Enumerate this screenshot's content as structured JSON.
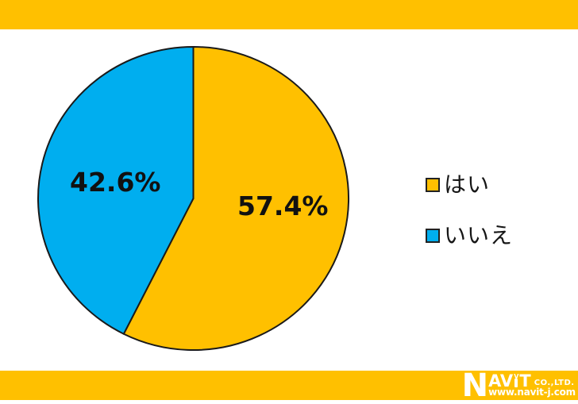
{
  "page": {
    "background": "#ffffff",
    "band_color": "#FFC000"
  },
  "chart_data": {
    "type": "pie",
    "title": "",
    "start_angle_deg": 0,
    "direction": "clockwise",
    "stroke_color": "#1a1a1a",
    "legend_position": "right",
    "slices": [
      {
        "label": "はい",
        "value": 57.4,
        "display": "57.4%",
        "color": "#FFC000"
      },
      {
        "label": "いいえ",
        "value": 42.6,
        "display": "42.6%",
        "color": "#00AEEF"
      }
    ]
  },
  "legend": {
    "items": [
      {
        "label": "はい",
        "color": "#FFC000"
      },
      {
        "label": "いいえ",
        "color": "#00AEEF"
      }
    ]
  },
  "logo": {
    "big_letter": "N",
    "mid_letters": "AV",
    "tail_letter": "T",
    "suffix": "CO.,LTD.",
    "url": "www.navit-j.com"
  },
  "icons": {
    "rabbit_ears": "V"
  }
}
